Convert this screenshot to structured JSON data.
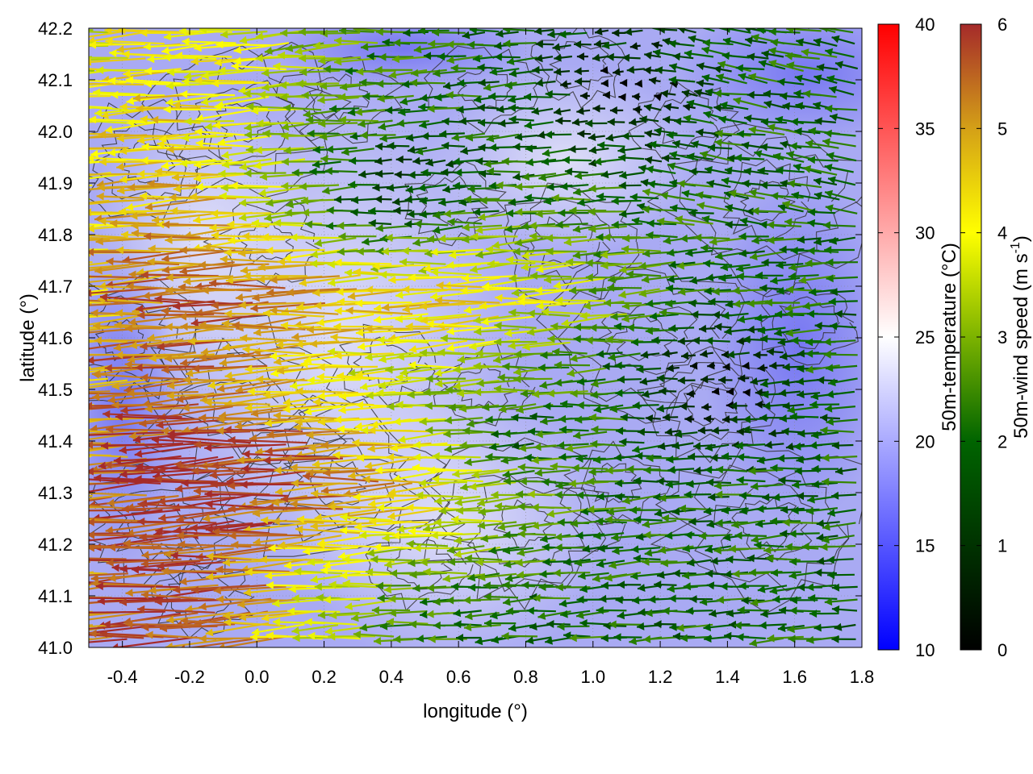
{
  "chart_data": {
    "type": "vector-field",
    "x": {
      "label": "longitude (°)",
      "range": [
        -0.5,
        1.8
      ],
      "ticks": [
        -0.4,
        -0.2,
        0.0,
        0.2,
        0.4,
        0.6,
        0.8,
        1.0,
        1.2,
        1.4,
        1.6,
        1.8
      ],
      "tick_labels": [
        "-0.4",
        "-0.2",
        "0.0",
        "0.2",
        "0.4",
        "0.6",
        "0.8",
        "1.0",
        "1.2",
        "1.4",
        "1.6",
        "1.8"
      ]
    },
    "y": {
      "label": "latitude (°)",
      "range": [
        41.0,
        42.2
      ],
      "ticks": [
        41.0,
        41.1,
        41.2,
        41.3,
        41.4,
        41.5,
        41.6,
        41.7,
        41.8,
        41.9,
        42.0,
        42.1,
        42.2
      ],
      "tick_labels": [
        "41.0",
        "41.1",
        "41.2",
        "41.3",
        "41.4",
        "41.5",
        "41.6",
        "41.7",
        "41.8",
        "41.9",
        "42.0",
        "42.1",
        "42.2"
      ]
    },
    "grid": true,
    "temperature_colorbar": {
      "label": "50m-temperature (°C)",
      "range": [
        10,
        40
      ],
      "ticks": [
        10,
        15,
        20,
        25,
        30,
        35,
        40
      ],
      "tick_labels": [
        "10",
        "15",
        "20",
        "25",
        "30",
        "35",
        "40"
      ],
      "colors": [
        "#0000ff",
        "#ffffff",
        "#ff0000"
      ]
    },
    "wind_colorbar": {
      "label": "50m-wind speed (m s",
      "label_sup": "-1",
      "label_end": ")",
      "range": [
        0,
        6
      ],
      "ticks": [
        0,
        1,
        2,
        3,
        4,
        5,
        6
      ],
      "tick_labels": [
        "0",
        "1",
        "2",
        "3",
        "4",
        "5",
        "6"
      ],
      "colors": [
        "#000000",
        "#006400",
        "#2e8b00",
        "#9acd32",
        "#ffff00",
        "#daa520",
        "#a52a2a"
      ]
    },
    "background_temperature_typical": 20,
    "wind_direction": "from east (vectors point west)"
  }
}
